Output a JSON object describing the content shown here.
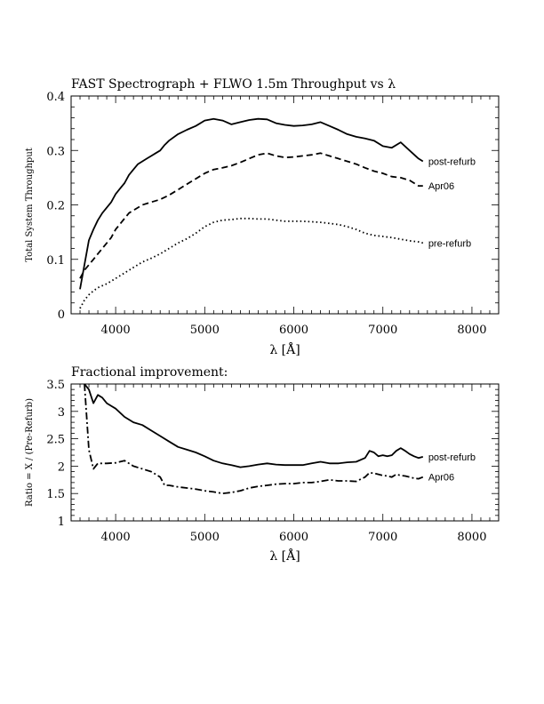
{
  "chart_data": [
    {
      "type": "line",
      "title": "FAST Spectrograph + FLWO 1.5m Throughput vs λ",
      "xlabel": "λ [Å]",
      "ylabel": "Total System Throughput",
      "xlim": [
        3500,
        8300
      ],
      "ylim": [
        0,
        0.4
      ],
      "xticks": [
        4000,
        5000,
        6000,
        7000,
        8000
      ],
      "xtick_labels": [
        "4000",
        "5000",
        "6000",
        "7000",
        "8000"
      ],
      "yticks": [
        0,
        0.1,
        0.2,
        0.3,
        0.4
      ],
      "ytick_labels": [
        "0",
        "0.1",
        "0.2",
        "0.3",
        "0.4"
      ],
      "grid": false,
      "legend": "inline labels at right end of each curve",
      "series": [
        {
          "name": "post-refurb",
          "style": "solid",
          "x": [
            3600,
            3650,
            3700,
            3750,
            3800,
            3850,
            3900,
            3950,
            4000,
            4050,
            4100,
            4150,
            4200,
            4250,
            4300,
            4350,
            4400,
            4450,
            4500,
            4550,
            4600,
            4700,
            4800,
            4900,
            5000,
            5100,
            5200,
            5300,
            5400,
            5500,
            5600,
            5700,
            5800,
            5900,
            6000,
            6100,
            6200,
            6300,
            6400,
            6500,
            6600,
            6700,
            6800,
            6900,
            7000,
            7100,
            7200,
            7300,
            7400,
            7450
          ],
          "y": [
            0.045,
            0.09,
            0.135,
            0.155,
            0.172,
            0.185,
            0.195,
            0.205,
            0.22,
            0.23,
            0.24,
            0.255,
            0.265,
            0.275,
            0.28,
            0.285,
            0.29,
            0.295,
            0.3,
            0.31,
            0.318,
            0.33,
            0.338,
            0.345,
            0.355,
            0.358,
            0.355,
            0.348,
            0.352,
            0.356,
            0.358,
            0.357,
            0.35,
            0.347,
            0.345,
            0.346,
            0.348,
            0.352,
            0.345,
            0.338,
            0.33,
            0.325,
            0.322,
            0.318,
            0.308,
            0.305,
            0.315,
            0.3,
            0.285,
            0.28
          ]
        },
        {
          "name": "Apr06",
          "style": "dashed",
          "x": [
            3600,
            3650,
            3700,
            3750,
            3800,
            3850,
            3900,
            3950,
            4000,
            4050,
            4100,
            4150,
            4200,
            4300,
            4400,
            4500,
            4600,
            4700,
            4800,
            4900,
            5000,
            5100,
            5200,
            5300,
            5400,
            5500,
            5600,
            5700,
            5800,
            5900,
            6000,
            6100,
            6200,
            6300,
            6400,
            6500,
            6600,
            6700,
            6800,
            6900,
            7000,
            7100,
            7200,
            7300,
            7400,
            7450
          ],
          "y": [
            0.065,
            0.08,
            0.09,
            0.1,
            0.11,
            0.12,
            0.13,
            0.14,
            0.155,
            0.165,
            0.175,
            0.185,
            0.19,
            0.2,
            0.205,
            0.21,
            0.218,
            0.228,
            0.238,
            0.248,
            0.258,
            0.265,
            0.268,
            0.272,
            0.278,
            0.285,
            0.292,
            0.295,
            0.29,
            0.287,
            0.288,
            0.29,
            0.292,
            0.295,
            0.29,
            0.285,
            0.28,
            0.275,
            0.268,
            0.262,
            0.258,
            0.252,
            0.25,
            0.245,
            0.235,
            0.235
          ]
        },
        {
          "name": "pre-refurb",
          "style": "dotted",
          "x": [
            3600,
            3650,
            3700,
            3750,
            3800,
            3900,
            4000,
            4100,
            4200,
            4300,
            4400,
            4500,
            4600,
            4700,
            4800,
            4900,
            5000,
            5100,
            5200,
            5300,
            5400,
            5500,
            5600,
            5700,
            5800,
            5900,
            6000,
            6100,
            6200,
            6300,
            6400,
            6500,
            6600,
            6700,
            6800,
            6900,
            7000,
            7100,
            7200,
            7300,
            7400,
            7450
          ],
          "y": [
            0.01,
            0.025,
            0.035,
            0.042,
            0.048,
            0.055,
            0.065,
            0.075,
            0.085,
            0.095,
            0.102,
            0.11,
            0.12,
            0.13,
            0.138,
            0.148,
            0.16,
            0.168,
            0.172,
            0.173,
            0.175,
            0.175,
            0.174,
            0.174,
            0.172,
            0.17,
            0.17,
            0.17,
            0.169,
            0.168,
            0.166,
            0.164,
            0.16,
            0.155,
            0.148,
            0.144,
            0.142,
            0.14,
            0.137,
            0.134,
            0.132,
            0.13
          ]
        }
      ]
    },
    {
      "type": "line",
      "title": "Fractional improvement:",
      "xlabel": "λ [Å]",
      "ylabel": "Ratio = X / (Pre-Refurb)",
      "xlim": [
        3500,
        8300
      ],
      "ylim": [
        1,
        3.5
      ],
      "xticks": [
        4000,
        5000,
        6000,
        7000,
        8000
      ],
      "xtick_labels": [
        "4000",
        "5000",
        "6000",
        "7000",
        "8000"
      ],
      "yticks": [
        1,
        1.5,
        2,
        2.5,
        3,
        3.5
      ],
      "ytick_labels": [
        "1",
        "1.5",
        "2",
        "2.5",
        "3",
        "3.5"
      ],
      "grid": false,
      "legend": "inline labels at right end of each curve",
      "series": [
        {
          "name": "post-refurb",
          "style": "solid",
          "x": [
            3650,
            3700,
            3750,
            3800,
            3850,
            3900,
            4000,
            4100,
            4200,
            4300,
            4400,
            4500,
            4600,
            4700,
            4800,
            4900,
            5000,
            5100,
            5200,
            5300,
            5400,
            5500,
            5600,
            5700,
            5800,
            5900,
            6000,
            6100,
            6200,
            6300,
            6400,
            6500,
            6600,
            6700,
            6800,
            6850,
            6900,
            6950,
            7000,
            7050,
            7100,
            7150,
            7200,
            7250,
            7300,
            7350,
            7400,
            7450
          ],
          "y": [
            3.5,
            3.4,
            3.15,
            3.3,
            3.25,
            3.15,
            3.05,
            2.9,
            2.8,
            2.75,
            2.65,
            2.55,
            2.45,
            2.35,
            2.3,
            2.25,
            2.18,
            2.1,
            2.05,
            2.02,
            1.98,
            2.0,
            2.03,
            2.05,
            2.03,
            2.02,
            2.02,
            2.02,
            2.05,
            2.08,
            2.05,
            2.05,
            2.07,
            2.08,
            2.15,
            2.28,
            2.25,
            2.18,
            2.2,
            2.18,
            2.2,
            2.28,
            2.33,
            2.28,
            2.22,
            2.18,
            2.15,
            2.17
          ]
        },
        {
          "name": "Apr06",
          "style": "dash-dot",
          "x": [
            3650,
            3700,
            3750,
            3800,
            3850,
            3900,
            4000,
            4100,
            4200,
            4300,
            4400,
            4500,
            4550,
            4600,
            4700,
            4800,
            4900,
            5000,
            5100,
            5200,
            5300,
            5400,
            5500,
            5600,
            5700,
            5800,
            5900,
            6000,
            6100,
            6200,
            6300,
            6400,
            6500,
            6600,
            6700,
            6800,
            6850,
            6900,
            6950,
            7000,
            7050,
            7100,
            7150,
            7200,
            7250,
            7300,
            7350,
            7400,
            7450
          ],
          "y": [
            3.5,
            2.3,
            1.95,
            2.05,
            2.05,
            2.05,
            2.06,
            2.1,
            2.0,
            1.95,
            1.9,
            1.8,
            1.65,
            1.65,
            1.62,
            1.6,
            1.58,
            1.55,
            1.53,
            1.5,
            1.52,
            1.55,
            1.6,
            1.63,
            1.65,
            1.67,
            1.68,
            1.68,
            1.7,
            1.7,
            1.72,
            1.75,
            1.73,
            1.73,
            1.72,
            1.8,
            1.88,
            1.87,
            1.85,
            1.83,
            1.82,
            1.8,
            1.85,
            1.83,
            1.82,
            1.8,
            1.78,
            1.77,
            1.8
          ]
        }
      ]
    }
  ]
}
